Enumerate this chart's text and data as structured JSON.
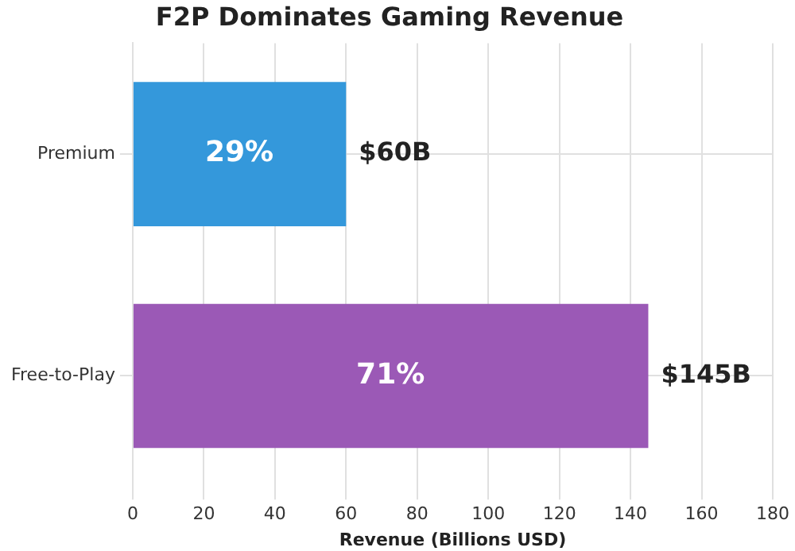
{
  "chart_data": {
    "type": "bar",
    "orientation": "horizontal",
    "title": "F2P Dominates Gaming Revenue",
    "xlabel": "Revenue (Billions USD)",
    "categories": [
      "Premium",
      "Free-to-Play"
    ],
    "values": [
      60,
      145
    ],
    "colors": [
      "#3498db",
      "#9b59b6"
    ],
    "value_labels": [
      "$60B",
      "$145B"
    ],
    "annotations": [
      "29%",
      "71%"
    ],
    "xlim": [
      0,
      180
    ],
    "xticks": [
      0,
      20,
      40,
      60,
      80,
      100,
      120,
      140,
      160,
      180
    ],
    "grid": true
  }
}
